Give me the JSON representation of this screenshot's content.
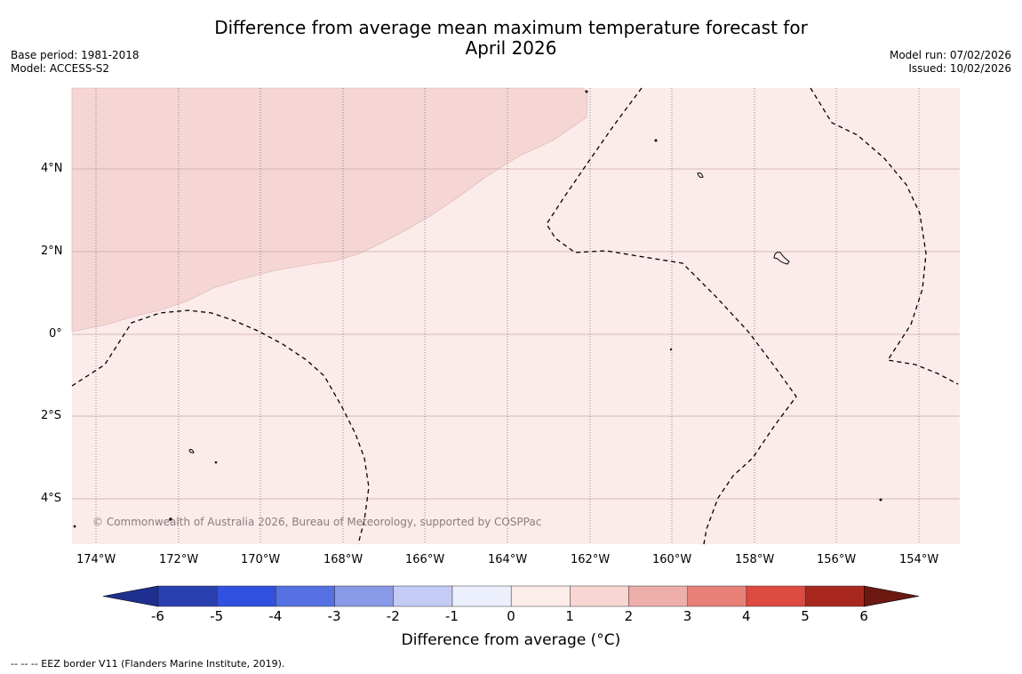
{
  "title_line1": "Difference from average mean maximum temperature forecast for",
  "title_line2": "April 2026",
  "base_period": "Base period: 1981-2018",
  "model": "Model: ACCESS-S2",
  "model_run": "Model run: 07/02/2026",
  "issued": "Issued: 10/02/2026",
  "copyright": "© Commonwealth of Australia 2026, Bureau of Meteorology, supported by COSPPac",
  "lon_labels": [
    "174°W",
    "172°W",
    "170°W",
    "168°W",
    "166°W",
    "164°W",
    "162°W",
    "160°W",
    "158°W",
    "156°W",
    "154°W"
  ],
  "lat_labels": [
    "4°N",
    "2°N",
    "0°",
    "2°S",
    "4°S"
  ],
  "colorbar": {
    "ticks": [
      "-6",
      "-5",
      "-4",
      "-3",
      "-2",
      "-1",
      "0",
      "1",
      "2",
      "3",
      "4",
      "5",
      "6"
    ],
    "colors": [
      "#1f2f8f",
      "#2a40b0",
      "#3050e0",
      "#5570e0",
      "#8899e8",
      "#c4cbf5",
      "#eceffc",
      "#fcedea",
      "#f7d6d4",
      "#eeaeaa",
      "#e88078",
      "#dd4a40",
      "#a8281f",
      "#6e1812"
    ],
    "title": "Difference from average (°C)"
  },
  "legend_footer": "--  --  -- EEZ border V11 (Flanders Marine Institute, 2019).",
  "map_colors": {
    "background": "#fbebea",
    "warm_region": "#f5d6d4",
    "grid": "#c9a9a9"
  }
}
